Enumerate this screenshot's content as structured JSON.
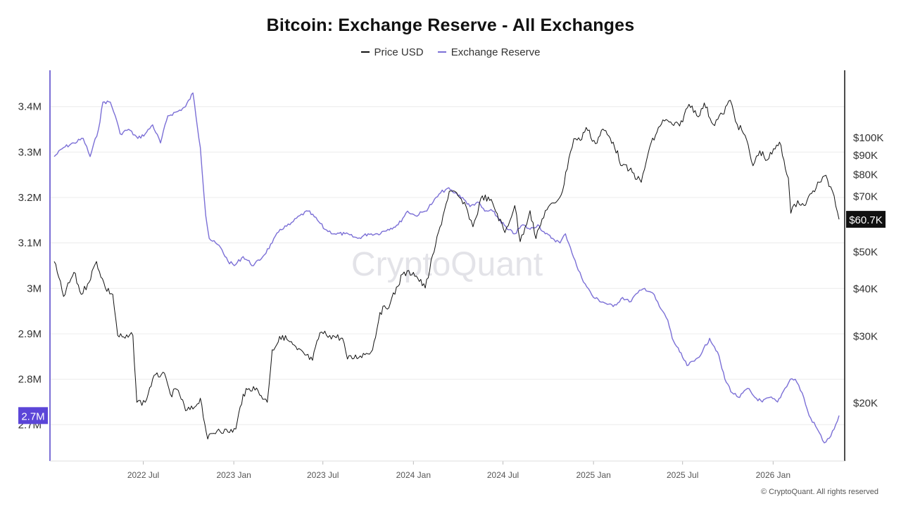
{
  "title": "Bitcoin: Exchange Reserve - All Exchanges",
  "footer": "© CryptoQuant. All rights reserved",
  "watermark": "CryptoQuant",
  "legend": [
    {
      "name": "Price USD",
      "color": "#111111"
    },
    {
      "name": "Exchange Reserve",
      "color": "#7b6fd6"
    }
  ],
  "colors": {
    "reserve": "#7b6fd6",
    "price": "#111111",
    "reserve_badge": "#5b45d8",
    "price_badge": "#111111",
    "grid": "#ececec",
    "watermark": "#e3e3e8"
  },
  "chart_data": {
    "type": "line",
    "title": "Bitcoin: Exchange Reserve - All Exchanges",
    "grid": true,
    "legend_position": "top-center",
    "x_axis": {
      "type": "date",
      "range": [
        "2022-01-01",
        "2026-05-15"
      ],
      "ticks": [
        {
          "date": "2022-07-01",
          "label": "2022 Jul"
        },
        {
          "date": "2023-01-01",
          "label": "2023 Jan"
        },
        {
          "date": "2023-07-01",
          "label": "2023 Jul"
        },
        {
          "date": "2024-01-01",
          "label": "2024 Jan"
        },
        {
          "date": "2024-07-01",
          "label": "2024 Jul"
        },
        {
          "date": "2025-01-01",
          "label": "2025 Jan"
        },
        {
          "date": "2025-07-01",
          "label": "2025 Jul"
        },
        {
          "date": "2026-01-01",
          "label": "2026 Jan"
        }
      ]
    },
    "y_left": {
      "scale": "linear",
      "range": [
        2.62,
        3.48
      ],
      "unit": "M",
      "ticks": [
        {
          "value": 2.7,
          "label": "2.7M"
        },
        {
          "value": 2.8,
          "label": "2.8M"
        },
        {
          "value": 2.9,
          "label": "2.9M"
        },
        {
          "value": 3.0,
          "label": "3M"
        },
        {
          "value": 3.1,
          "label": "3.1M"
        },
        {
          "value": 3.2,
          "label": "3.2M"
        },
        {
          "value": 3.3,
          "label": "3.3M"
        },
        {
          "value": 3.4,
          "label": "3.4M"
        }
      ],
      "current_badge": "2.7M"
    },
    "y_right": {
      "scale": "log",
      "range": [
        14000,
        150000
      ],
      "ticks": [
        {
          "value": 20000,
          "label": "$20K"
        },
        {
          "value": 30000,
          "label": "$30K"
        },
        {
          "value": 40000,
          "label": "$40K"
        },
        {
          "value": 50000,
          "label": "$50K"
        },
        {
          "value": 70000,
          "label": "$70K"
        },
        {
          "value": 80000,
          "label": "$80K"
        },
        {
          "value": 90000,
          "label": "$90K"
        },
        {
          "value": 100000,
          "label": "$100K"
        }
      ],
      "current_badge": "$60.7K"
    },
    "series": [
      {
        "name": "Exchange Reserve",
        "axis": "left",
        "points": [
          [
            "2022-01-01",
            3.29
          ],
          [
            "2022-01-20",
            3.31
          ],
          [
            "2022-02-10",
            3.32
          ],
          [
            "2022-03-01",
            3.33
          ],
          [
            "2022-03-15",
            3.29
          ],
          [
            "2022-04-01",
            3.35
          ],
          [
            "2022-04-10",
            3.41
          ],
          [
            "2022-04-25",
            3.41
          ],
          [
            "2022-05-05",
            3.38
          ],
          [
            "2022-05-15",
            3.34
          ],
          [
            "2022-06-01",
            3.35
          ],
          [
            "2022-06-20",
            3.33
          ],
          [
            "2022-07-05",
            3.34
          ],
          [
            "2022-07-20",
            3.36
          ],
          [
            "2022-08-05",
            3.32
          ],
          [
            "2022-08-20",
            3.38
          ],
          [
            "2022-09-10",
            3.39
          ],
          [
            "2022-09-25",
            3.4
          ],
          [
            "2022-10-10",
            3.43
          ],
          [
            "2022-10-25",
            3.31
          ],
          [
            "2022-11-05",
            3.16
          ],
          [
            "2022-11-12",
            3.11
          ],
          [
            "2022-12-05",
            3.09
          ],
          [
            "2022-12-20",
            3.06
          ],
          [
            "2023-01-02",
            3.05
          ],
          [
            "2023-01-20",
            3.07
          ],
          [
            "2023-02-10",
            3.05
          ],
          [
            "2023-03-01",
            3.07
          ],
          [
            "2023-03-20",
            3.1
          ],
          [
            "2023-04-05",
            3.13
          ],
          [
            "2023-04-25",
            3.14
          ],
          [
            "2023-05-15",
            3.16
          ],
          [
            "2023-06-01",
            3.17
          ],
          [
            "2023-06-20",
            3.15
          ],
          [
            "2023-07-05",
            3.13
          ],
          [
            "2023-07-25",
            3.12
          ],
          [
            "2023-08-15",
            3.12
          ],
          [
            "2023-09-10",
            3.11
          ],
          [
            "2023-10-01",
            3.12
          ],
          [
            "2023-10-20",
            3.12
          ],
          [
            "2023-11-10",
            3.13
          ],
          [
            "2023-12-01",
            3.14
          ],
          [
            "2023-12-20",
            3.17
          ],
          [
            "2024-01-05",
            3.16
          ],
          [
            "2024-01-25",
            3.17
          ],
          [
            "2024-02-10",
            3.19
          ],
          [
            "2024-02-25",
            3.21
          ],
          [
            "2024-03-10",
            3.22
          ],
          [
            "2024-03-25",
            3.21
          ],
          [
            "2024-04-10",
            3.2
          ],
          [
            "2024-04-25",
            3.18
          ],
          [
            "2024-05-10",
            3.19
          ],
          [
            "2024-05-25",
            3.17
          ],
          [
            "2024-06-10",
            3.17
          ],
          [
            "2024-06-25",
            3.15
          ],
          [
            "2024-07-10",
            3.13
          ],
          [
            "2024-07-25",
            3.12
          ],
          [
            "2024-08-10",
            3.14
          ],
          [
            "2024-08-25",
            3.13
          ],
          [
            "2024-09-10",
            3.14
          ],
          [
            "2024-09-25",
            3.12
          ],
          [
            "2024-10-10",
            3.11
          ],
          [
            "2024-10-25",
            3.1
          ],
          [
            "2024-11-05",
            3.12
          ],
          [
            "2024-11-15",
            3.09
          ],
          [
            "2024-12-01",
            3.04
          ],
          [
            "2024-12-15",
            3.01
          ],
          [
            "2025-01-01",
            2.98
          ],
          [
            "2025-01-20",
            2.97
          ],
          [
            "2025-02-10",
            2.96
          ],
          [
            "2025-03-01",
            2.98
          ],
          [
            "2025-03-15",
            2.97
          ],
          [
            "2025-04-01",
            2.99
          ],
          [
            "2025-04-15",
            3.0
          ],
          [
            "2025-05-01",
            2.99
          ],
          [
            "2025-05-15",
            2.96
          ],
          [
            "2025-06-01",
            2.93
          ],
          [
            "2025-06-10",
            2.89
          ],
          [
            "2025-06-25",
            2.86
          ],
          [
            "2025-07-10",
            2.83
          ],
          [
            "2025-07-25",
            2.84
          ],
          [
            "2025-08-10",
            2.86
          ],
          [
            "2025-08-25",
            2.89
          ],
          [
            "2025-09-10",
            2.86
          ],
          [
            "2025-09-25",
            2.8
          ],
          [
            "2025-10-10",
            2.77
          ],
          [
            "2025-10-25",
            2.76
          ],
          [
            "2025-11-10",
            2.78
          ],
          [
            "2025-11-25",
            2.76
          ],
          [
            "2025-12-10",
            2.75
          ],
          [
            "2025-12-25",
            2.76
          ],
          [
            "2026-01-10",
            2.75
          ],
          [
            "2026-01-25",
            2.78
          ],
          [
            "2026-02-05",
            2.8
          ],
          [
            "2026-02-15",
            2.8
          ],
          [
            "2026-03-01",
            2.77
          ],
          [
            "2026-03-15",
            2.72
          ],
          [
            "2026-04-01",
            2.69
          ],
          [
            "2026-04-15",
            2.66
          ],
          [
            "2026-04-25",
            2.67
          ],
          [
            "2026-05-05",
            2.69
          ],
          [
            "2026-05-15",
            2.72
          ]
        ]
      },
      {
        "name": "Price USD",
        "axis": "right",
        "points": [
          [
            "2022-01-01",
            47000
          ],
          [
            "2022-01-20",
            38000
          ],
          [
            "2022-02-10",
            44000
          ],
          [
            "2022-02-25",
            38500
          ],
          [
            "2022-03-10",
            41000
          ],
          [
            "2022-03-28",
            47000
          ],
          [
            "2022-04-15",
            40000
          ],
          [
            "2022-04-30",
            38500
          ],
          [
            "2022-05-10",
            30000
          ],
          [
            "2022-05-25",
            29500
          ],
          [
            "2022-06-10",
            30000
          ],
          [
            "2022-06-18",
            20000
          ],
          [
            "2022-07-05",
            20000
          ],
          [
            "2022-07-20",
            23000
          ],
          [
            "2022-08-10",
            24000
          ],
          [
            "2022-08-25",
            21000
          ],
          [
            "2022-09-10",
            21500
          ],
          [
            "2022-09-25",
            19000
          ],
          [
            "2022-10-10",
            19200
          ],
          [
            "2022-10-25",
            20500
          ],
          [
            "2022-11-09",
            16000
          ],
          [
            "2022-12-01",
            17000
          ],
          [
            "2022-12-20",
            16700
          ],
          [
            "2023-01-05",
            17000
          ],
          [
            "2023-01-20",
            21000
          ],
          [
            "2023-02-10",
            22000
          ],
          [
            "2023-03-10",
            20000
          ],
          [
            "2023-03-20",
            27500
          ],
          [
            "2023-04-10",
            30000
          ],
          [
            "2023-05-10",
            27500
          ],
          [
            "2023-06-10",
            25800
          ],
          [
            "2023-06-25",
            30500
          ],
          [
            "2023-07-15",
            30000
          ],
          [
            "2023-08-10",
            29500
          ],
          [
            "2023-08-20",
            26000
          ],
          [
            "2023-09-15",
            26500
          ],
          [
            "2023-10-10",
            27500
          ],
          [
            "2023-10-25",
            34500
          ],
          [
            "2023-11-15",
            36500
          ],
          [
            "2023-12-10",
            43500
          ],
          [
            "2024-01-01",
            44000
          ],
          [
            "2024-01-25",
            40000
          ],
          [
            "2024-02-15",
            52000
          ],
          [
            "2024-03-01",
            62000
          ],
          [
            "2024-03-14",
            72000
          ],
          [
            "2024-04-01",
            70000
          ],
          [
            "2024-04-20",
            64000
          ],
          [
            "2024-05-01",
            58000
          ],
          [
            "2024-05-20",
            70000
          ],
          [
            "2024-06-10",
            67000
          ],
          [
            "2024-07-05",
            56000
          ],
          [
            "2024-07-25",
            66000
          ],
          [
            "2024-08-05",
            53000
          ],
          [
            "2024-08-25",
            64000
          ],
          [
            "2024-09-06",
            54000
          ],
          [
            "2024-09-25",
            64000
          ],
          [
            "2024-10-15",
            67000
          ],
          [
            "2024-10-30",
            72000
          ],
          [
            "2024-11-12",
            88000
          ],
          [
            "2024-11-22",
            99000
          ],
          [
            "2024-12-05",
            98000
          ],
          [
            "2024-12-17",
            106000
          ],
          [
            "2025-01-05",
            96000
          ],
          [
            "2025-01-20",
            105000
          ],
          [
            "2025-02-10",
            97000
          ],
          [
            "2025-02-28",
            84000
          ],
          [
            "2025-03-15",
            82000
          ],
          [
            "2025-04-08",
            76000
          ],
          [
            "2025-04-25",
            94000
          ],
          [
            "2025-05-10",
            103000
          ],
          [
            "2025-05-22",
            111000
          ],
          [
            "2025-06-10",
            108000
          ],
          [
            "2025-06-25",
            107000
          ],
          [
            "2025-07-14",
            122000
          ],
          [
            "2025-08-05",
            114000
          ],
          [
            "2025-08-14",
            123000
          ],
          [
            "2025-09-01",
            108000
          ],
          [
            "2025-09-20",
            115000
          ],
          [
            "2025-10-06",
            125000
          ],
          [
            "2025-10-20",
            108000
          ],
          [
            "2025-11-05",
            101000
          ],
          [
            "2025-11-21",
            84000
          ],
          [
            "2025-12-05",
            92000
          ],
          [
            "2025-12-20",
            87000
          ],
          [
            "2026-01-05",
            93000
          ],
          [
            "2026-01-14",
            97000
          ],
          [
            "2026-02-01",
            78000
          ],
          [
            "2026-02-06",
            63000
          ],
          [
            "2026-02-20",
            68000
          ],
          [
            "2026-03-05",
            66000
          ],
          [
            "2026-03-20",
            71000
          ],
          [
            "2026-04-05",
            76000
          ],
          [
            "2026-04-15",
            79000
          ],
          [
            "2026-04-28",
            74000
          ],
          [
            "2026-05-05",
            70000
          ],
          [
            "2026-05-15",
            60700
          ]
        ]
      }
    ]
  }
}
